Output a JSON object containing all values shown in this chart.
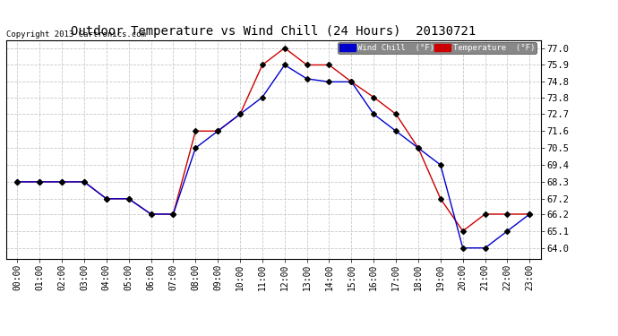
{
  "title": "Outdoor Temperature vs Wind Chill (24 Hours)  20130721",
  "copyright": "Copyright 2013 Cartronics.com",
  "background_color": "#ffffff",
  "plot_bg_color": "#ffffff",
  "grid_color": "#c8c8c8",
  "x_labels": [
    "00:00",
    "01:00",
    "02:00",
    "03:00",
    "04:00",
    "05:00",
    "06:00",
    "07:00",
    "08:00",
    "09:00",
    "10:00",
    "11:00",
    "12:00",
    "13:00",
    "14:00",
    "15:00",
    "16:00",
    "17:00",
    "18:00",
    "19:00",
    "20:00",
    "21:00",
    "22:00",
    "23:00"
  ],
  "y_ticks": [
    64.0,
    65.1,
    66.2,
    67.2,
    68.3,
    69.4,
    70.5,
    71.6,
    72.7,
    73.8,
    74.8,
    75.9,
    77.0
  ],
  "temperature": [
    68.3,
    68.3,
    68.3,
    68.3,
    67.2,
    67.2,
    66.2,
    66.2,
    71.6,
    71.6,
    72.7,
    75.9,
    77.0,
    75.9,
    75.9,
    74.8,
    73.8,
    72.7,
    70.5,
    67.2,
    65.1,
    66.2,
    66.2,
    66.2
  ],
  "wind_chill": [
    68.3,
    68.3,
    68.3,
    68.3,
    67.2,
    67.2,
    66.2,
    66.2,
    70.5,
    71.6,
    72.7,
    73.8,
    75.9,
    75.0,
    74.8,
    74.8,
    72.7,
    71.6,
    70.5,
    69.4,
    64.0,
    64.0,
    65.1,
    66.2
  ],
  "temp_color": "#cc0000",
  "wind_color": "#0000cc",
  "legend_wind_bg": "#0000cc",
  "legend_temp_bg": "#cc0000",
  "legend_text_color": "#ffffff",
  "marker_size": 3
}
